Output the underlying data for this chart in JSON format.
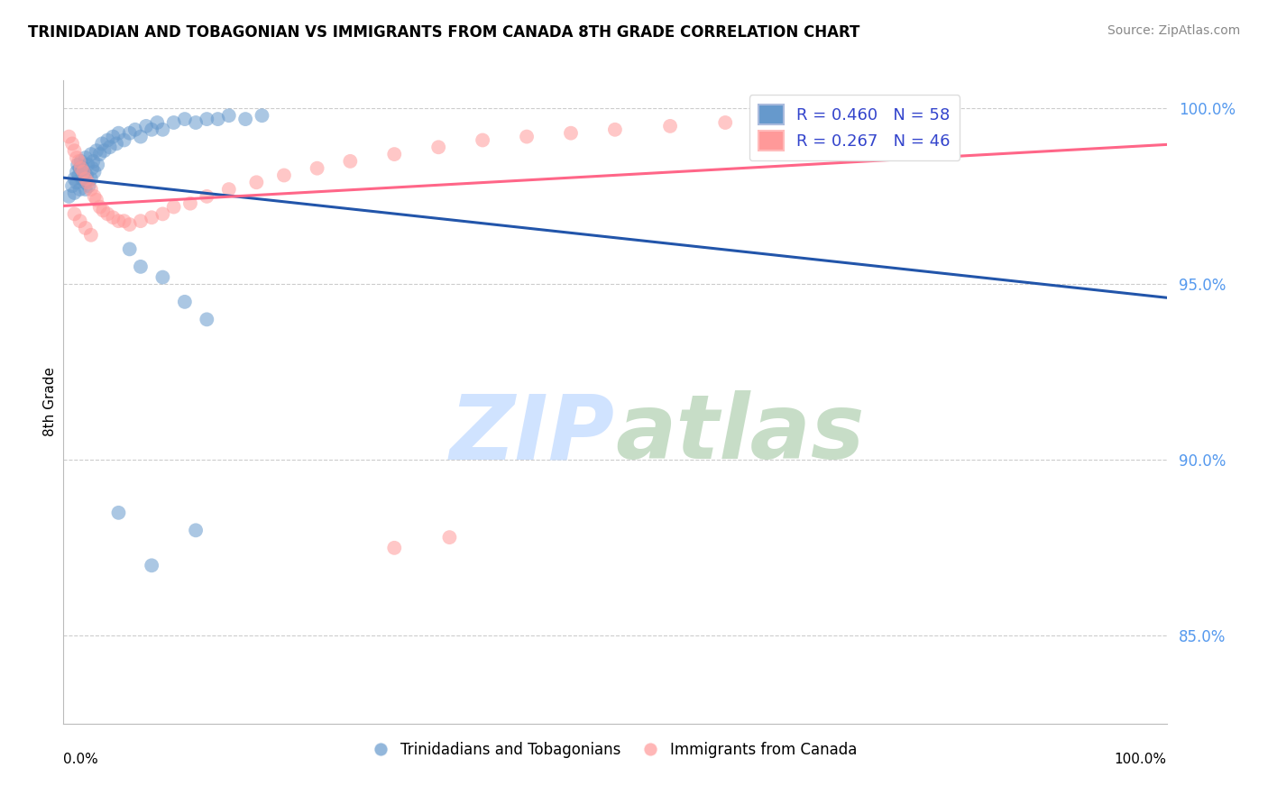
{
  "title": "TRINIDADIAN AND TOBAGONIAN VS IMMIGRANTS FROM CANADA 8TH GRADE CORRELATION CHART",
  "source": "Source: ZipAtlas.com",
  "ylabel": "8th Grade",
  "xlim": [
    0.0,
    1.0
  ],
  "ylim": [
    0.825,
    1.008
  ],
  "yticks": [
    0.85,
    0.9,
    0.95,
    1.0
  ],
  "ytick_labels": [
    "85.0%",
    "90.0%",
    "95.0%",
    "100.0%"
  ],
  "blue_R": 0.46,
  "blue_N": 58,
  "pink_R": 0.267,
  "pink_N": 46,
  "blue_color": "#6699CC",
  "pink_color": "#FF9999",
  "blue_line_color": "#2255AA",
  "pink_line_color": "#FF6688",
  "legend_blue_label": "R = 0.460   N = 58",
  "legend_pink_label": "R = 0.267   N = 46",
  "watermark": "ZIPatlas",
  "background_color": "#FFFFFF",
  "grid_color": "#CCCCCC",
  "blue_scatter_x": [
    0.005,
    0.008,
    0.01,
    0.01,
    0.012,
    0.012,
    0.013,
    0.014,
    0.015,
    0.015,
    0.016,
    0.017,
    0.018,
    0.02,
    0.02,
    0.02,
    0.021,
    0.022,
    0.023,
    0.025,
    0.025,
    0.026,
    0.027,
    0.028,
    0.03,
    0.031,
    0.033,
    0.035,
    0.037,
    0.04,
    0.042,
    0.045,
    0.048,
    0.05,
    0.055,
    0.06,
    0.065,
    0.07,
    0.075,
    0.08,
    0.085,
    0.09,
    0.1,
    0.11,
    0.12,
    0.13,
    0.14,
    0.15,
    0.165,
    0.18,
    0.06,
    0.07,
    0.09,
    0.11,
    0.13,
    0.05,
    0.08,
    0.12
  ],
  "blue_scatter_y": [
    0.975,
    0.978,
    0.98,
    0.976,
    0.982,
    0.979,
    0.984,
    0.981,
    0.983,
    0.977,
    0.985,
    0.98,
    0.983,
    0.986,
    0.979,
    0.977,
    0.981,
    0.984,
    0.978,
    0.987,
    0.98,
    0.983,
    0.985,
    0.982,
    0.988,
    0.984,
    0.987,
    0.99,
    0.988,
    0.991,
    0.989,
    0.992,
    0.99,
    0.993,
    0.991,
    0.993,
    0.994,
    0.992,
    0.995,
    0.994,
    0.996,
    0.994,
    0.996,
    0.997,
    0.996,
    0.997,
    0.997,
    0.998,
    0.997,
    0.998,
    0.96,
    0.955,
    0.952,
    0.945,
    0.94,
    0.885,
    0.87,
    0.88
  ],
  "pink_scatter_x": [
    0.005,
    0.008,
    0.01,
    0.012,
    0.014,
    0.016,
    0.018,
    0.02,
    0.022,
    0.025,
    0.028,
    0.03,
    0.033,
    0.036,
    0.04,
    0.045,
    0.05,
    0.055,
    0.06,
    0.07,
    0.08,
    0.09,
    0.1,
    0.115,
    0.13,
    0.15,
    0.175,
    0.2,
    0.23,
    0.26,
    0.3,
    0.34,
    0.38,
    0.42,
    0.46,
    0.5,
    0.55,
    0.6,
    0.65,
    0.7,
    0.01,
    0.015,
    0.02,
    0.025,
    0.3,
    0.35
  ],
  "pink_scatter_y": [
    0.992,
    0.99,
    0.988,
    0.986,
    0.985,
    0.983,
    0.982,
    0.98,
    0.979,
    0.977,
    0.975,
    0.974,
    0.972,
    0.971,
    0.97,
    0.969,
    0.968,
    0.968,
    0.967,
    0.968,
    0.969,
    0.97,
    0.972,
    0.973,
    0.975,
    0.977,
    0.979,
    0.981,
    0.983,
    0.985,
    0.987,
    0.989,
    0.991,
    0.992,
    0.993,
    0.994,
    0.995,
    0.996,
    0.997,
    0.998,
    0.97,
    0.968,
    0.966,
    0.964,
    0.875,
    0.878
  ]
}
